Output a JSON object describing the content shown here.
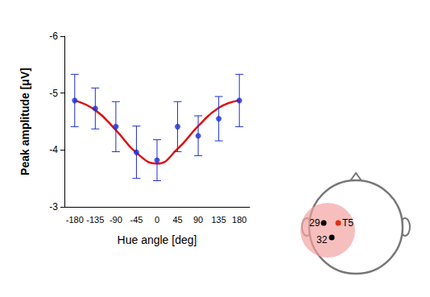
{
  "chart_data": {
    "type": "scatter",
    "categories": [
      "-180",
      "-135",
      "-90",
      "-45",
      "0",
      "45",
      "90",
      "135",
      "180"
    ],
    "values": [
      -4.87,
      -4.73,
      -4.41,
      -3.96,
      -3.82,
      -4.41,
      -4.25,
      -4.55,
      -4.87
    ],
    "errors": [
      0.46,
      0.36,
      0.44,
      0.46,
      0.36,
      0.44,
      0.35,
      0.39,
      0.46
    ],
    "color": "#1c2ed6",
    "marker": "circle",
    "fit": {
      "type": "line",
      "color": "#e01010",
      "values": [
        -4.87,
        -4.7,
        -4.35,
        -3.95,
        -3.76,
        -4.02,
        -4.42,
        -4.74,
        -4.87
      ]
    },
    "xlabel": "Hue angle [deg]",
    "ylabel": "Peak amplitude [μV]",
    "ylim": [
      -3,
      -6
    ],
    "yticks": [
      -3,
      -4,
      -5,
      -6
    ],
    "grid": false
  },
  "electrode_map": {
    "labels": [
      "29",
      "T5",
      "32"
    ]
  }
}
